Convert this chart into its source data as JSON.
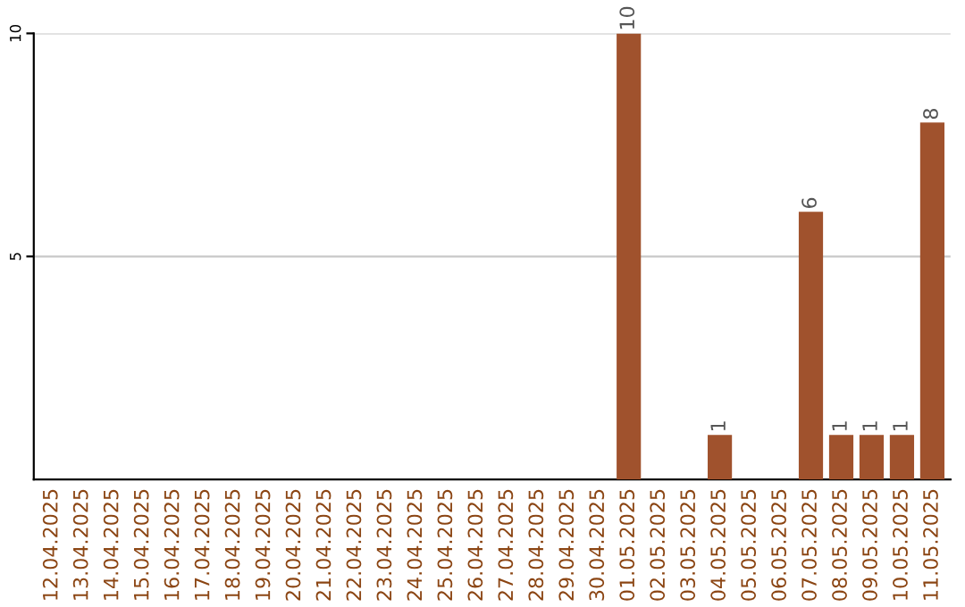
{
  "chart_data": {
    "type": "bar",
    "categories": [
      "12.04.2025",
      "13.04.2025",
      "14.04.2025",
      "15.04.2025",
      "16.04.2025",
      "17.04.2025",
      "18.04.2025",
      "19.04.2025",
      "20.04.2025",
      "21.04.2025",
      "22.04.2025",
      "23.04.2025",
      "24.04.2025",
      "25.04.2025",
      "26.04.2025",
      "27.04.2025",
      "28.04.2025",
      "29.04.2025",
      "30.04.2025",
      "01.05.2025",
      "02.05.2025",
      "03.05.2025",
      "04.05.2025",
      "05.05.2025",
      "06.05.2025",
      "07.05.2025",
      "08.05.2025",
      "09.05.2025",
      "10.05.2025",
      "11.05.2025"
    ],
    "values": [
      0,
      0,
      0,
      0,
      0,
      0,
      0,
      0,
      0,
      0,
      0,
      0,
      0,
      0,
      0,
      0,
      0,
      0,
      0,
      10,
      0,
      0,
      1,
      0,
      0,
      6,
      1,
      1,
      1,
      8
    ],
    "value_labels": [
      null,
      null,
      null,
      null,
      null,
      null,
      null,
      null,
      null,
      null,
      null,
      null,
      null,
      null,
      null,
      null,
      null,
      null,
      null,
      "10",
      null,
      null,
      "1",
      null,
      null,
      "6",
      "1",
      "1",
      "1",
      "8"
    ],
    "color": "#a0522d",
    "ylim": [
      0,
      10
    ],
    "yticks": [
      5,
      10
    ],
    "grid": "y"
  }
}
